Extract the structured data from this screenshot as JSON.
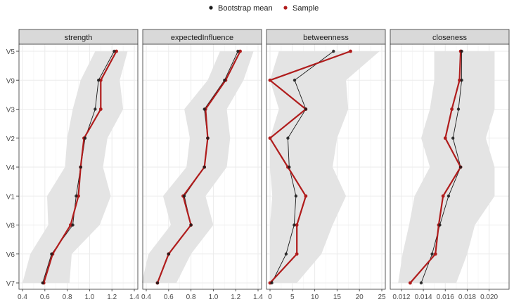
{
  "legend": {
    "items": [
      {
        "label": "Bootstrap mean",
        "color": "#1a1a1a"
      },
      {
        "label": "Sample",
        "color": "#b01c1c"
      }
    ]
  },
  "chart_data": {
    "type": "line",
    "categories": [
      "V5",
      "V9",
      "V3",
      "V2",
      "V4",
      "V1",
      "V8",
      "V6",
      "V7"
    ],
    "panels": [
      {
        "title": "strength",
        "xlim": [
          0.4,
          1.4
        ],
        "xticks": [
          0.4,
          0.6,
          0.8,
          1.0,
          1.2,
          1.4
        ],
        "xtick_labels": [
          "0.4",
          "0.6",
          "0.8",
          "1.0",
          "1.2",
          "1.4"
        ],
        "bootstrap_mean": [
          1.22,
          1.08,
          1.05,
          0.96,
          0.92,
          0.88,
          0.85,
          0.66,
          0.58
        ],
        "sample": [
          1.24,
          1.1,
          1.1,
          0.95,
          0.92,
          0.9,
          0.83,
          0.67,
          0.59
        ],
        "ci_lower": [
          1.05,
          0.92,
          0.85,
          0.8,
          0.78,
          0.62,
          0.63,
          0.47,
          0.4
        ],
        "ci_upper": [
          1.34,
          1.27,
          1.3,
          1.16,
          1.12,
          1.19,
          1.09,
          0.84,
          0.82
        ]
      },
      {
        "title": "expectedInfluence",
        "xlim": [
          0.4,
          1.4
        ],
        "xticks": [
          0.4,
          0.6,
          0.8,
          1.0,
          1.2,
          1.4
        ],
        "xtick_labels": [
          "0.4",
          "0.6",
          "0.8",
          "1.0",
          "1.2",
          "1.4"
        ],
        "bootstrap_mean": [
          1.22,
          1.1,
          0.92,
          0.95,
          0.92,
          0.74,
          0.8,
          0.6,
          0.5
        ],
        "sample": [
          1.24,
          1.11,
          0.93,
          0.95,
          0.92,
          0.73,
          0.8,
          0.6,
          0.5
        ],
        "ci_lower": [
          1.06,
          0.95,
          0.74,
          0.79,
          0.76,
          0.55,
          0.62,
          0.42,
          0.36
        ],
        "ci_upper": [
          1.36,
          1.27,
          1.12,
          1.15,
          1.12,
          0.93,
          1.0,
          0.8,
          0.67
        ]
      },
      {
        "title": "betweenness",
        "xlim": [
          0,
          25
        ],
        "xticks": [
          0,
          5,
          10,
          15,
          20,
          25
        ],
        "xtick_labels": [
          "0",
          "5",
          "10",
          "15",
          "20",
          "25"
        ],
        "bootstrap_mean": [
          14.2,
          5.5,
          8.0,
          4.0,
          4.3,
          5.8,
          5.4,
          3.6,
          0.4
        ],
        "sample": [
          18.0,
          0.0,
          8.0,
          0.0,
          4.0,
          8.0,
          6.0,
          6.0,
          0.0
        ],
        "ci_lower": [
          2.0,
          0.0,
          2.0,
          0.0,
          0.0,
          0.5,
          0.0,
          0.0,
          0.0
        ],
        "ci_upper": [
          24.5,
          17.0,
          17.5,
          15.0,
          14.0,
          17.0,
          14.0,
          11.5,
          6.0
        ]
      },
      {
        "title": "closeness",
        "xlim": [
          0.0113,
          0.0215
        ],
        "xticks": [
          0.012,
          0.014,
          0.016,
          0.018,
          0.02
        ],
        "xtick_labels": [
          "0.012",
          "0.014",
          "0.016",
          "0.018",
          "0.020"
        ],
        "bootstrap_mean": [
          0.0175,
          0.0175,
          0.0172,
          0.0167,
          0.0174,
          0.0163,
          0.0155,
          0.0148,
          0.0138
        ],
        "sample": [
          0.0174,
          0.0173,
          0.0166,
          0.016,
          0.0174,
          0.0158,
          0.0154,
          0.0151,
          0.0128
        ],
        "ci_lower": [
          0.015,
          0.015,
          0.0146,
          0.0138,
          0.0146,
          0.0132,
          0.0127,
          0.0121,
          0.0117
        ],
        "ci_upper": [
          0.0205,
          0.0205,
          0.0205,
          0.0197,
          0.0205,
          0.0205,
          0.0187,
          0.018,
          0.017
        ]
      }
    ],
    "colors": {
      "bootstrap_mean": "#1a1a1a",
      "sample": "#b01c1c",
      "ribbon": "#e4e4e4",
      "strip_bg": "#d9d9d9",
      "grid": "#ebebeb"
    },
    "legend_position": "top"
  }
}
